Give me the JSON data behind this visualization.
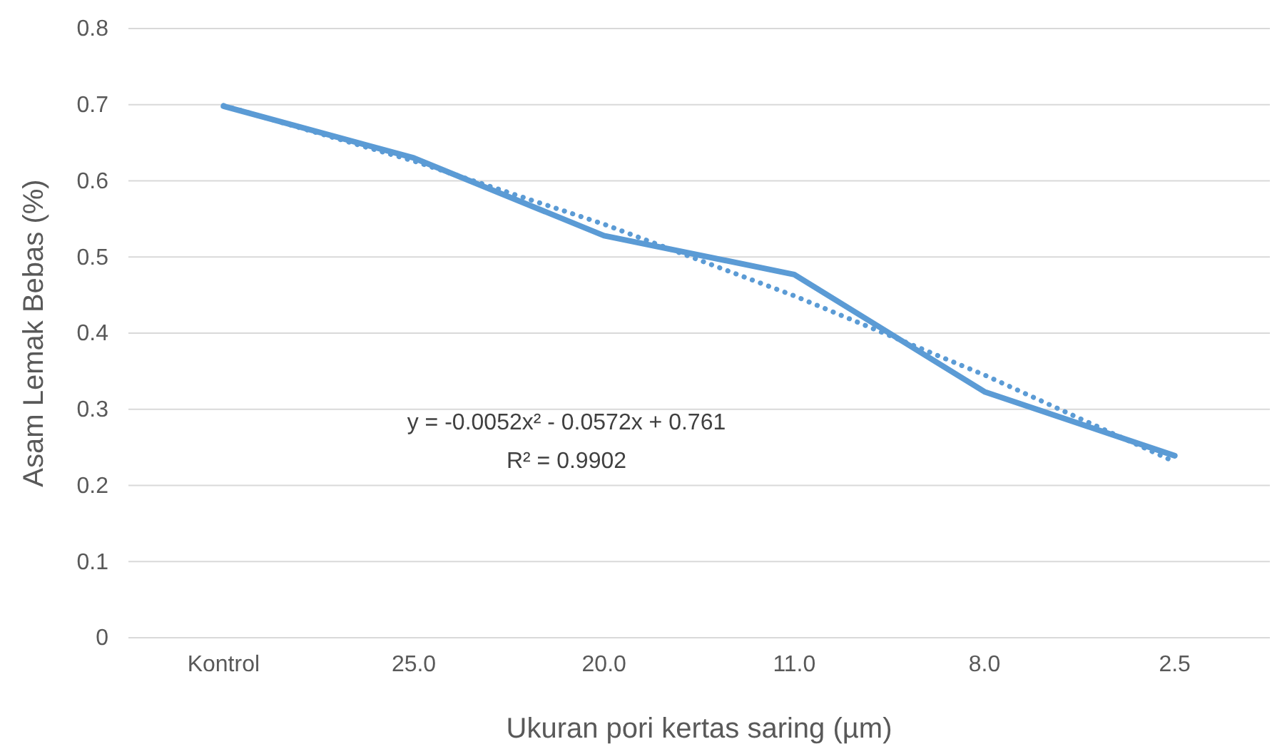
{
  "chart_data": {
    "type": "line",
    "xlabel": "Ukuran pori kertas saring (µm)",
    "ylabel": "Asam Lemak Bebas (%)",
    "categories": [
      "Kontrol",
      "25.0",
      "20.0",
      "11.0",
      "8.0",
      "2.5"
    ],
    "series": [
      {
        "color": "#5b9bd5",
        "values": [
          0.698,
          0.63,
          0.528,
          0.477,
          0.323,
          0.239
        ],
        "line_style": "solid"
      },
      {
        "color": "#5b9bd5",
        "values": [
          0.699,
          0.626,
          0.543,
          0.449,
          0.345,
          0.231
        ],
        "line_style": "dotted"
      }
    ],
    "ylim": [
      0,
      0.8
    ],
    "yticks": [
      0,
      0.1,
      0.2,
      0.3,
      0.4,
      0.5,
      0.6,
      0.7,
      0.8
    ],
    "grid": "y",
    "marker": "none",
    "annotations": [
      "y = -0.0052x² - 0.0572x + 0.761",
      "R² = 0.9902"
    ]
  }
}
